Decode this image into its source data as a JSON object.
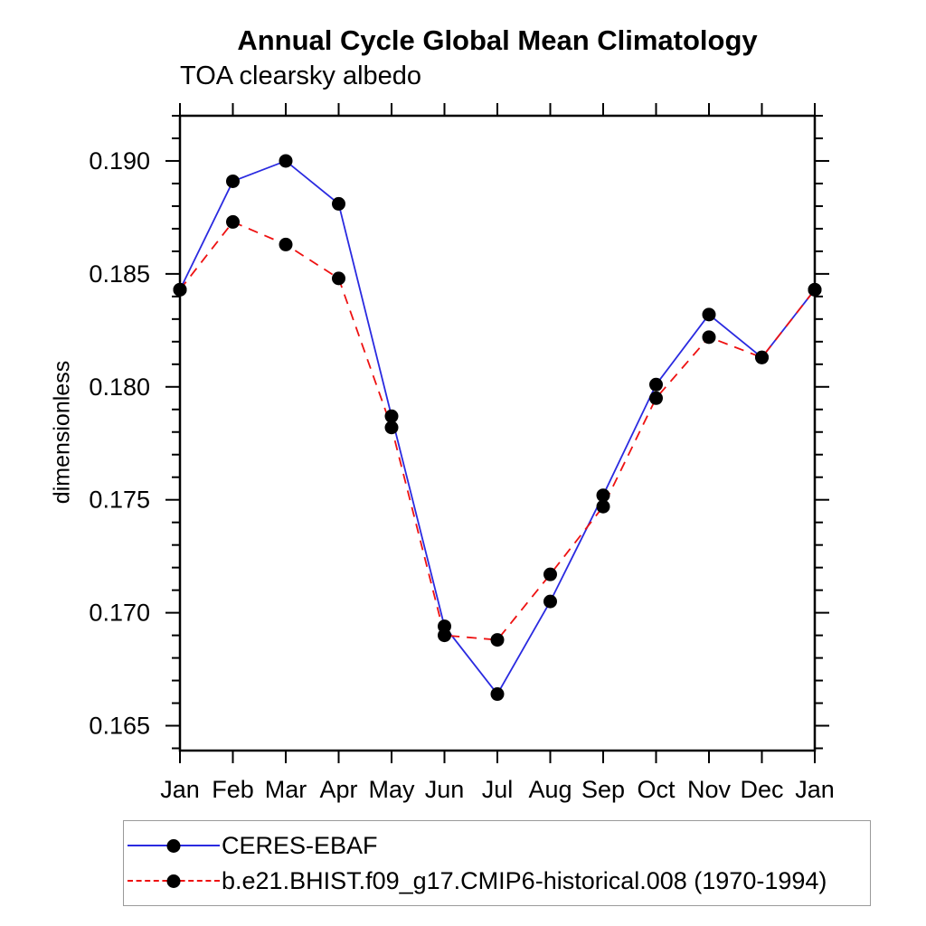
{
  "chart_data": {
    "type": "line",
    "title": "Annual Cycle Global Mean Climatology",
    "left_subtitle": "TOA clearsky albedo",
    "ylabel": "dimensionless",
    "xlabel": "",
    "categories": [
      "Jan",
      "Feb",
      "Mar",
      "Apr",
      "May",
      "Jun",
      "Jul",
      "Aug",
      "Sep",
      "Oct",
      "Nov",
      "Dec",
      "Jan"
    ],
    "ylim": [
      0.1639,
      0.192
    ],
    "y_major_ticks": [
      {
        "value": 0.165,
        "label": "0.165"
      },
      {
        "value": 0.17,
        "label": "0.170"
      },
      {
        "value": 0.175,
        "label": "0.175"
      },
      {
        "value": 0.18,
        "label": "0.180"
      },
      {
        "value": 0.185,
        "label": "0.185"
      },
      {
        "value": 0.19,
        "label": "0.190"
      }
    ],
    "y_minor_step": 0.001,
    "y_minor_range": [
      0.164,
      0.192
    ],
    "grid": false,
    "legend_position": "bottom",
    "axis_color": "#000000",
    "marker_color": "#000000",
    "legend_border_color": "#9a9a9a",
    "series": [
      {
        "name": "CERES-EBAF",
        "color": "#2a2ae0",
        "style": "solid",
        "marker": "filled-circle",
        "values": [
          0.1843,
          0.1891,
          0.19,
          0.1881,
          0.1787,
          0.1694,
          0.1664,
          0.1705,
          0.1752,
          0.1801,
          0.1832,
          0.1813,
          0.1843
        ]
      },
      {
        "name": "b.e21.BHIST.f09_g17.CMIP6-historical.008 (1970-1994)",
        "color": "#ee1111",
        "style": "dashed",
        "marker": "filled-circle",
        "values": [
          0.1843,
          0.1873,
          0.1863,
          0.1848,
          0.1782,
          0.169,
          0.1688,
          0.1717,
          0.1747,
          0.1795,
          0.1822,
          0.1813,
          0.1843
        ]
      }
    ]
  }
}
